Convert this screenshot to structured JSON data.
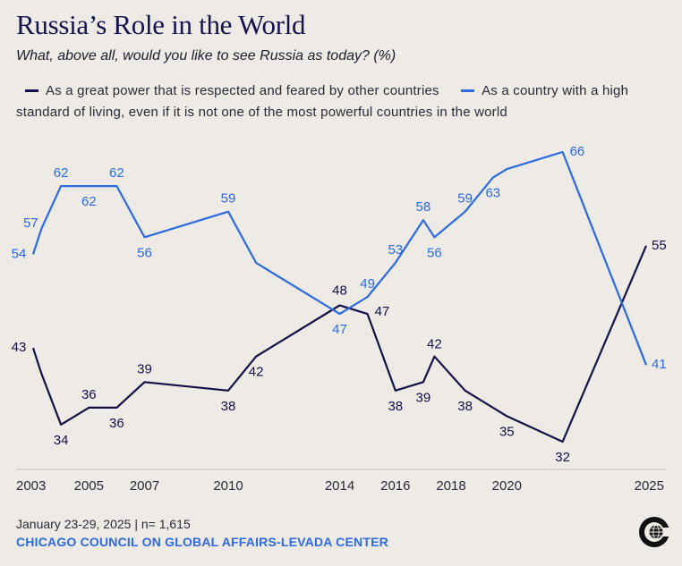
{
  "header": {
    "title": "Russia’s Role in the World",
    "subtitle": "What, above all, would you like to see Russia as today? (%)"
  },
  "footer": {
    "date_sample": "January 23-29, 2025 | n= 1,615",
    "source": "CHICAGO COUNCIL ON GLOBAL AFFAIRS-LEVADA CENTER"
  },
  "colors": {
    "great_power": "#141048",
    "living_standard": "#2c6ae3",
    "background": "#eeeae6",
    "axis": "#2a2a38"
  },
  "logo": {
    "icon": "globe-c-logo-icon"
  },
  "chart_data": {
    "type": "line",
    "title": "Russia’s Role in the World",
    "subtitle": "What, above all, would you like to see Russia as today? (%)",
    "xlabel": "",
    "ylabel": "",
    "xlim": [
      2003,
      2025
    ],
    "ylim": [
      20,
      70
    ],
    "x_ticks": [
      "2003",
      "2005",
      "2007",
      "2010",
      "2014",
      "2016",
      "2018",
      "2020",
      "2025"
    ],
    "legend_position": "top",
    "grid": false,
    "series": [
      {
        "name": "As a great power that is respected and feared by other countries",
        "color": "#141048",
        "points": [
          {
            "x": 2003.0,
            "y": 43,
            "label": "43"
          },
          {
            "x": 2003.3,
            "y": 40
          },
          {
            "x": 2004.0,
            "y": 34,
            "label": "34"
          },
          {
            "x": 2005.0,
            "y": 36,
            "label": "36"
          },
          {
            "x": 2006.0,
            "y": 36,
            "label": "36"
          },
          {
            "x": 2007.0,
            "y": 39,
            "label": "39"
          },
          {
            "x": 2010.0,
            "y": 38,
            "label": "38"
          },
          {
            "x": 2011.0,
            "y": 42,
            "label": "42"
          },
          {
            "x": 2014.0,
            "y": 48,
            "label": "48"
          },
          {
            "x": 2015.0,
            "y": 47,
            "label": "47"
          },
          {
            "x": 2016.0,
            "y": 38,
            "label": "38"
          },
          {
            "x": 2017.0,
            "y": 39,
            "label": "39"
          },
          {
            "x": 2017.4,
            "y": 42,
            "label": "42"
          },
          {
            "x": 2018.5,
            "y": 38,
            "label": "38"
          },
          {
            "x": 2019.5,
            "y": 36
          },
          {
            "x": 2020.0,
            "y": 35,
            "label": "35"
          },
          {
            "x": 2022.0,
            "y": 32,
            "label": "32"
          },
          {
            "x": 2025.0,
            "y": 55,
            "label": "55"
          }
        ]
      },
      {
        "name": "As a country with a high standard of living, even if it is not one of the most powerful countries in the world",
        "color": "#2c6ae3",
        "points": [
          {
            "x": 2003.0,
            "y": 54,
            "label": "54"
          },
          {
            "x": 2003.3,
            "y": 57,
            "label": "57"
          },
          {
            "x": 2004.0,
            "y": 62,
            "label": "62"
          },
          {
            "x": 2005.0,
            "y": 62,
            "label": "62"
          },
          {
            "x": 2006.0,
            "y": 62,
            "label": "62"
          },
          {
            "x": 2007.0,
            "y": 56,
            "label": "56"
          },
          {
            "x": 2010.0,
            "y": 59,
            "label": "59"
          },
          {
            "x": 2011.0,
            "y": 53
          },
          {
            "x": 2014.0,
            "y": 47,
            "label": "47"
          },
          {
            "x": 2015.0,
            "y": 49,
            "label": "49"
          },
          {
            "x": 2016.0,
            "y": 53,
            "label": "53"
          },
          {
            "x": 2017.0,
            "y": 58,
            "label": "58"
          },
          {
            "x": 2017.4,
            "y": 56,
            "label": "56"
          },
          {
            "x": 2018.5,
            "y": 59,
            "label": "59"
          },
          {
            "x": 2019.5,
            "y": 63,
            "label": "63"
          },
          {
            "x": 2020.0,
            "y": 64
          },
          {
            "x": 2022.0,
            "y": 66,
            "label": "66"
          },
          {
            "x": 2025.0,
            "y": 41,
            "label": "41"
          }
        ]
      }
    ]
  }
}
